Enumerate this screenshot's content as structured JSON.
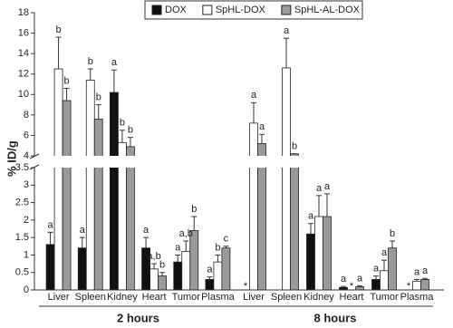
{
  "chart_data": {
    "type": "bar",
    "y_label": "% ID/g",
    "groups": [
      {
        "name": "2 hours",
        "categories": [
          "Liver",
          "Spleen",
          "Kidney",
          "Heart",
          "Tumor",
          "Plasma"
        ]
      },
      {
        "name": "8 hours",
        "categories": [
          "Liver",
          "Spleen",
          "Kidney",
          "Heart",
          "Tumor",
          "Plasma"
        ]
      }
    ],
    "ylim_lower": [
      0,
      3.5
    ],
    "yticks_lower": [
      0,
      0.5,
      1,
      1.5,
      2,
      2.5,
      3,
      3.5
    ],
    "ylim_upper": [
      4,
      18
    ],
    "yticks_upper": [
      4,
      6,
      8,
      10,
      12,
      14,
      16,
      18
    ],
    "legend_position": "top",
    "series": [
      {
        "name": "DOX",
        "color": "#111111",
        "values": [
          1.3,
          1.2,
          10.2,
          1.2,
          0.8,
          0.3,
          null,
          null,
          1.6,
          0.07,
          0.3,
          null
        ],
        "errors": [
          0.35,
          0.3,
          2.2,
          0.3,
          0.2,
          0.07,
          null,
          null,
          0.3,
          0.03,
          0.1,
          null
        ],
        "labels": [
          "a",
          "a",
          "a",
          "a",
          "a",
          "a",
          "*",
          null,
          "a",
          "a",
          "a",
          "*"
        ]
      },
      {
        "name": "SpHL-DOX",
        "color": "#ffffff",
        "values": [
          12.5,
          11.4,
          5.3,
          0.6,
          1.1,
          0.8,
          7.2,
          12.6,
          2.1,
          null,
          0.55,
          0.25
        ],
        "errors": [
          3.1,
          1.1,
          1.2,
          0.15,
          0.3,
          0.2,
          2.0,
          2.9,
          0.6,
          null,
          0.3,
          0.05
        ],
        "labels": [
          "b",
          "b",
          "b",
          "a,b",
          "a,b",
          "b",
          "a",
          "a",
          "a",
          "*",
          "a",
          "a"
        ]
      },
      {
        "name": "SpHL-AL-DOX",
        "color": "#9a9a9a",
        "values": [
          9.4,
          7.6,
          4.9,
          0.4,
          1.7,
          1.2,
          5.2,
          4.2,
          2.1,
          0.09,
          1.2,
          0.3
        ],
        "errors": [
          1.2,
          1.4,
          0.9,
          0.1,
          0.4,
          0.05,
          0.9,
          0.0,
          0.65,
          0.03,
          0.2,
          0.03
        ],
        "labels": [
          "b",
          "b",
          "b",
          "b",
          "b",
          "c",
          "a",
          "b",
          "a",
          "a",
          "b",
          "a"
        ]
      }
    ]
  }
}
